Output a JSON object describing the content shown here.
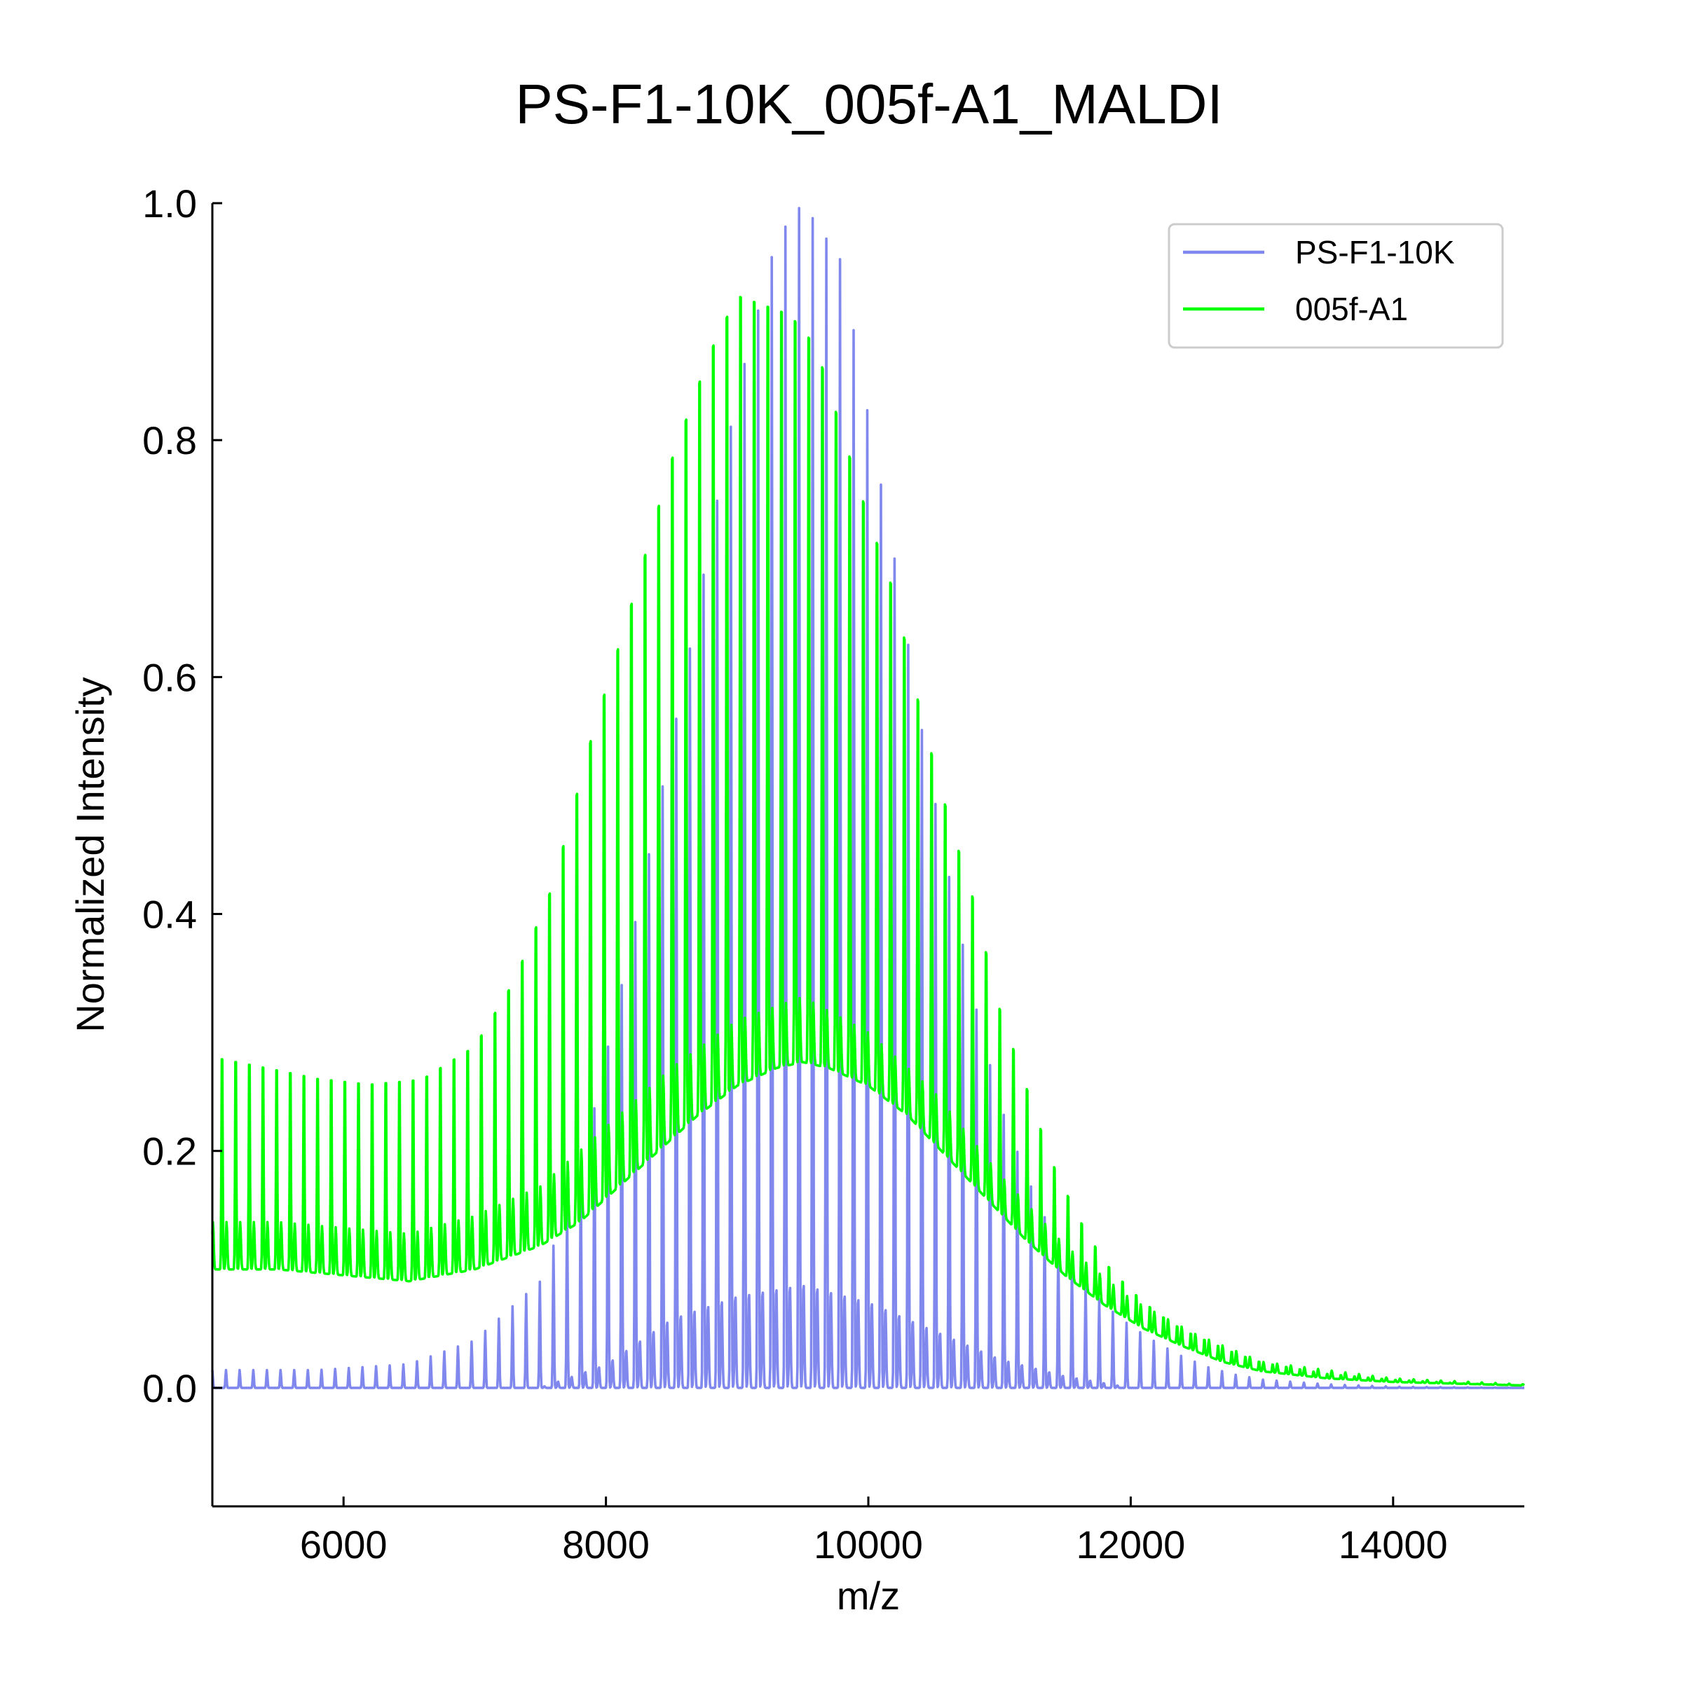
{
  "chart_data": {
    "type": "line",
    "title": "PS-F1-10K_005f-A1_MALDI",
    "xlabel": "m/z",
    "ylabel": "Normalized Intensity",
    "xlim": [
      5000,
      15000
    ],
    "ylim": [
      -0.1,
      1.0
    ],
    "x_ticks": [
      6000,
      8000,
      10000,
      12000,
      14000
    ],
    "x_tick_labels": [
      "6000",
      "8000",
      "10000",
      "12000",
      "14000"
    ],
    "y_ticks": [
      0.0,
      0.2,
      0.4,
      0.6,
      0.8,
      1.0
    ],
    "y_tick_labels": [
      "0.0",
      "0.2",
      "0.4",
      "0.6",
      "0.8",
      "1.0"
    ],
    "grid": false,
    "legend_position": "top-right",
    "peak_spacing_mz": 104,
    "series": [
      {
        "name": "PS-F1-10K",
        "color": "#8088ee",
        "peak_envelope": [
          [
            5000,
            0.015
          ],
          [
            5800,
            0.015
          ],
          [
            6500,
            0.02
          ],
          [
            7000,
            0.04
          ],
          [
            7500,
            0.09
          ],
          [
            7800,
            0.18
          ],
          [
            8200,
            0.38
          ],
          [
            8600,
            0.6
          ],
          [
            9000,
            0.84
          ],
          [
            9300,
            0.97
          ],
          [
            9500,
            1.0
          ],
          [
            9800,
            0.95
          ],
          [
            10000,
            0.82
          ],
          [
            10200,
            0.7
          ],
          [
            10400,
            0.56
          ],
          [
            10600,
            0.44
          ],
          [
            10800,
            0.33
          ],
          [
            11000,
            0.24
          ],
          [
            11200,
            0.18
          ],
          [
            11400,
            0.13
          ],
          [
            11600,
            0.095
          ],
          [
            11800,
            0.07
          ],
          [
            12000,
            0.052
          ],
          [
            12200,
            0.038
          ],
          [
            12400,
            0.026
          ],
          [
            12600,
            0.017
          ],
          [
            12800,
            0.011
          ],
          [
            13000,
            0.007
          ],
          [
            13500,
            0.003
          ],
          [
            14000,
            0.001
          ],
          [
            15000,
            0.0
          ]
        ],
        "baseline": [
          [
            5000,
            0.0
          ],
          [
            15000,
            0.0
          ]
        ],
        "minor_peak_envelope": [
          [
            5000,
            0.0
          ],
          [
            7500,
            0.0
          ],
          [
            8000,
            0.02
          ],
          [
            8500,
            0.06
          ],
          [
            9000,
            0.08
          ],
          [
            9500,
            0.09
          ],
          [
            10000,
            0.075
          ],
          [
            10500,
            0.05
          ],
          [
            11000,
            0.025
          ],
          [
            11500,
            0.01
          ],
          [
            12000,
            0.0
          ],
          [
            15000,
            0.0
          ]
        ]
      },
      {
        "name": "005f-A1",
        "color": "#00ff00",
        "peak_envelope": [
          [
            5000,
            0.3
          ],
          [
            5400,
            0.29
          ],
          [
            5800,
            0.28
          ],
          [
            6200,
            0.275
          ],
          [
            6600,
            0.28
          ],
          [
            7000,
            0.31
          ],
          [
            7300,
            0.37
          ],
          [
            7600,
            0.46
          ],
          [
            7900,
            0.6
          ],
          [
            8200,
            0.72
          ],
          [
            8500,
            0.85
          ],
          [
            8800,
            0.95
          ],
          [
            9000,
            1.0
          ],
          [
            9200,
            0.99
          ],
          [
            9400,
            0.98
          ],
          [
            9600,
            0.95
          ],
          [
            9800,
            0.87
          ],
          [
            10000,
            0.79
          ],
          [
            10200,
            0.72
          ],
          [
            10400,
            0.61
          ],
          [
            10600,
            0.52
          ],
          [
            10800,
            0.44
          ],
          [
            11000,
            0.34
          ],
          [
            11200,
            0.27
          ],
          [
            11400,
            0.2
          ],
          [
            11600,
            0.15
          ],
          [
            11800,
            0.11
          ],
          [
            12000,
            0.085
          ],
          [
            12200,
            0.065
          ],
          [
            12400,
            0.05
          ],
          [
            12600,
            0.04
          ],
          [
            12800,
            0.03
          ],
          [
            13000,
            0.022
          ],
          [
            13500,
            0.012
          ],
          [
            14000,
            0.007
          ],
          [
            14500,
            0.004
          ],
          [
            15000,
            0.002
          ]
        ],
        "baseline": [
          [
            5000,
            0.1
          ],
          [
            5500,
            0.1
          ],
          [
            6000,
            0.095
          ],
          [
            6500,
            0.09
          ],
          [
            7000,
            0.1
          ],
          [
            7500,
            0.12
          ],
          [
            7800,
            0.14
          ],
          [
            8100,
            0.17
          ],
          [
            8400,
            0.2
          ],
          [
            8700,
            0.23
          ],
          [
            9000,
            0.255
          ],
          [
            9300,
            0.27
          ],
          [
            9500,
            0.275
          ],
          [
            9700,
            0.27
          ],
          [
            10000,
            0.255
          ],
          [
            10300,
            0.23
          ],
          [
            10600,
            0.195
          ],
          [
            10900,
            0.16
          ],
          [
            11200,
            0.125
          ],
          [
            11500,
            0.095
          ],
          [
            11800,
            0.07
          ],
          [
            12100,
            0.05
          ],
          [
            12400,
            0.035
          ],
          [
            12700,
            0.022
          ],
          [
            13000,
            0.014
          ],
          [
            13500,
            0.008
          ],
          [
            14000,
            0.005
          ],
          [
            15000,
            0.002
          ]
        ],
        "minor_peak_envelope": [
          [
            5000,
            0.14
          ],
          [
            5500,
            0.14
          ],
          [
            6000,
            0.135
          ],
          [
            6500,
            0.13
          ],
          [
            7000,
            0.145
          ],
          [
            7500,
            0.17
          ],
          [
            8000,
            0.22
          ],
          [
            8500,
            0.27
          ],
          [
            9000,
            0.31
          ],
          [
            9500,
            0.33
          ],
          [
            10000,
            0.3
          ],
          [
            10500,
            0.25
          ],
          [
            11000,
            0.18
          ],
          [
            11500,
            0.12
          ],
          [
            12000,
            0.075
          ],
          [
            12500,
            0.045
          ],
          [
            13000,
            0.022
          ],
          [
            14000,
            0.008
          ],
          [
            15000,
            0.003
          ]
        ]
      }
    ]
  }
}
